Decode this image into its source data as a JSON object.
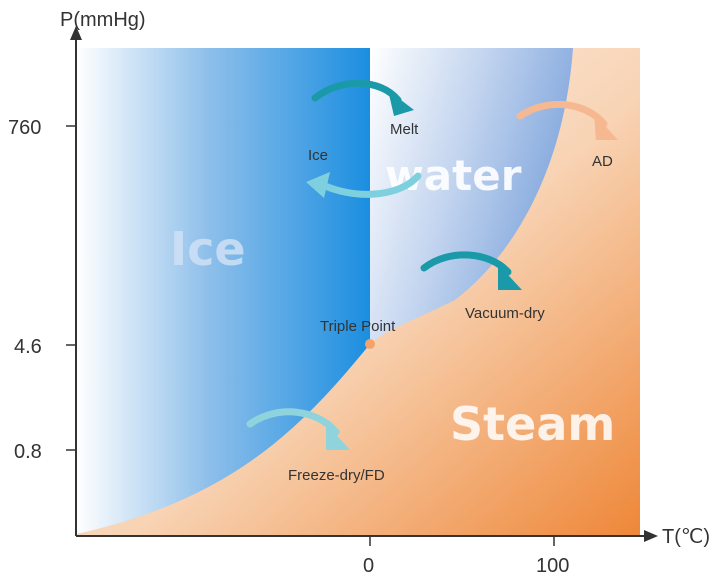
{
  "axes": {
    "y_title": "P(mmHg)",
    "x_title": "T(℃)",
    "y_ticks": [
      "760",
      "4.6",
      "0.8"
    ],
    "x_ticks": [
      "0",
      "100"
    ]
  },
  "regions": {
    "ice": "Ice",
    "water": "water",
    "steam": "Steam"
  },
  "labels": {
    "melt": "Melt",
    "ice_transition": "Ice",
    "ad": "AD",
    "vacuum_dry": "Vacuum-dry",
    "triple_point": "Triple Point",
    "freeze_dry": "Freeze-dry/FD"
  },
  "colors": {
    "ice_region": "#1e8fe0",
    "water_region": "#7fa6dd",
    "steam_region": "#ef8a40",
    "arrow_teal": "#1a9aa8",
    "arrow_light_teal": "#8fd3dd",
    "arrow_peach": "#f5b48c",
    "triple_point": "#f4a46a"
  }
}
